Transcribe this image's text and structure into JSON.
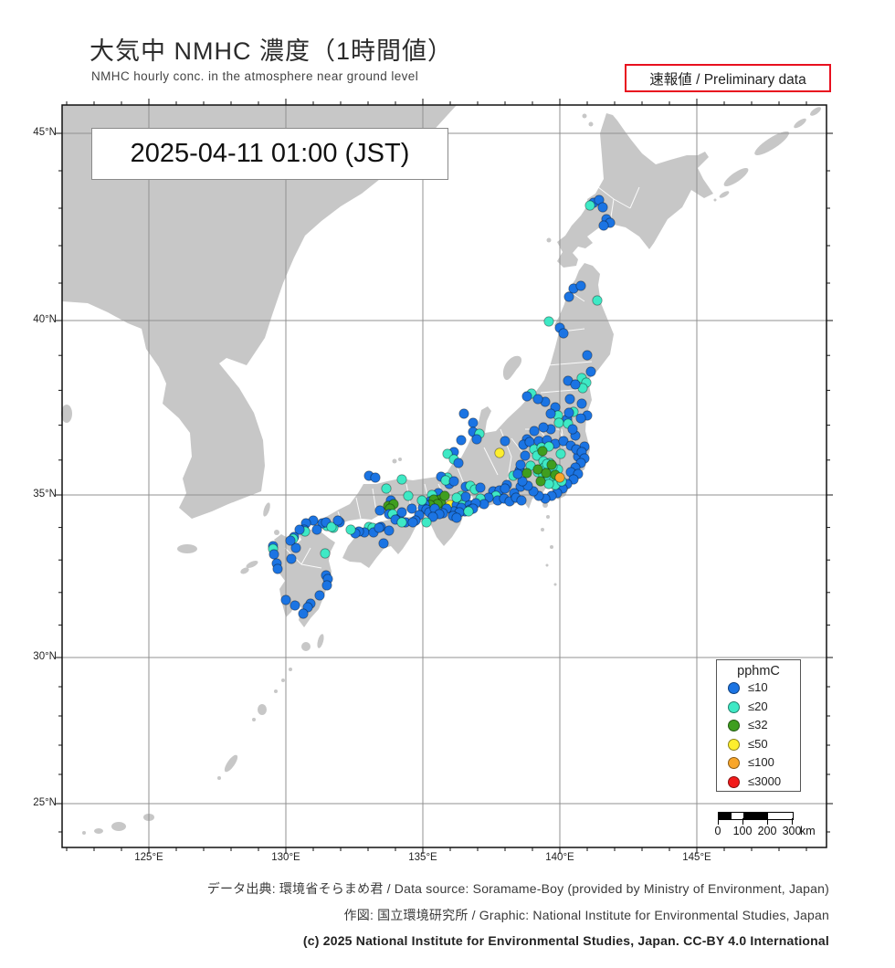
{
  "header": {
    "title": "大気中 NMHC 濃度（1時間値）",
    "subtitle": "NMHC hourly conc. in the atmosphere near ground level",
    "preliminary": "速報値 / Preliminary data"
  },
  "map": {
    "timestamp": "2025-04-11  01:00 (JST)",
    "lat_labels": [
      "45°N",
      "40°N",
      "35°N",
      "30°N",
      "25°N"
    ],
    "lon_labels": [
      "125°E",
      "130°E",
      "135°E",
      "140°E",
      "145°E"
    ]
  },
  "legend": {
    "title": "pphmC",
    "items": [
      {
        "label": "≤10",
        "color": "#1b74e3"
      },
      {
        "label": "≤20",
        "color": "#3ee9c5"
      },
      {
        "label": "≤32",
        "color": "#3f9e1f"
      },
      {
        "label": "≤50",
        "color": "#fdee2e"
      },
      {
        "label": "≤100",
        "color": "#f8a62a"
      },
      {
        "label": "≤3000",
        "color": "#f21a1a"
      }
    ]
  },
  "scalebar": {
    "ticks": [
      "0",
      "100",
      "200",
      "300"
    ],
    "unit": "km"
  },
  "footer": {
    "line1": "データ出典: 環境省そらまめ君 / Data source: Soramame-Boy (provided by Ministry of Environment, Japan)",
    "line2": "作図: 国立環境研究所 / Graphic: National Institute for Environmental Studies, Japan",
    "line3": "(c) 2025 National Institute for Environmental Studies, Japan. CC-BY 4.0 International"
  },
  "chart_data": {
    "type": "scatter",
    "note": "Air-quality monitoring stations; point = [x_px, y_px, color_class_index]; color class indexes legend.items (pphmC bins ≤10,≤20,≤32,≤50,≤100,≤3000). Map frame x:68-905px = 121.8-149.7°E, y:115-928px = 45.75-23.5°N (Mercator-like).",
    "unit": "pphmC",
    "axis": {
      "lon_ticks_deg": [
        125,
        130,
        135,
        140,
        145
      ],
      "lat_ticks_deg": [
        45,
        40,
        35,
        30,
        25
      ]
    },
    "points": [
      [
        650,
        222,
        0
      ],
      [
        656,
        219,
        0
      ],
      [
        646,
        225,
        1
      ],
      [
        660,
        227,
        0
      ],
      [
        664,
        240,
        0
      ],
      [
        668,
        244,
        0
      ],
      [
        661,
        247,
        0
      ],
      [
        628,
        316,
        0
      ],
      [
        636,
        313,
        0
      ],
      [
        623,
        325,
        0
      ],
      [
        654,
        329,
        1
      ],
      [
        601,
        352,
        1
      ],
      [
        613,
        359,
        0
      ],
      [
        617,
        365,
        0
      ],
      [
        643,
        389,
        0
      ],
      [
        647,
        407,
        0
      ],
      [
        637,
        414,
        1
      ],
      [
        642,
        419,
        1
      ],
      [
        622,
        417,
        0
      ],
      [
        638,
        425,
        1
      ],
      [
        630,
        421,
        0
      ],
      [
        582,
        431,
        1
      ],
      [
        577,
        434,
        0
      ],
      [
        624,
        437,
        0
      ],
      [
        637,
        442,
        0
      ],
      [
        608,
        446,
        0
      ],
      [
        597,
        440,
        0
      ],
      [
        589,
        437,
        0
      ],
      [
        643,
        455,
        0
      ],
      [
        628,
        451,
        1
      ],
      [
        636,
        458,
        0
      ],
      [
        621,
        459,
        0
      ],
      [
        611,
        455,
        1
      ],
      [
        508,
        453,
        0
      ],
      [
        518,
        463,
        0
      ],
      [
        518,
        473,
        0
      ],
      [
        525,
        475,
        1
      ],
      [
        522,
        481,
        0
      ],
      [
        505,
        482,
        0
      ],
      [
        497,
        495,
        0
      ],
      [
        490,
        497,
        1
      ],
      [
        497,
        503,
        1
      ],
      [
        502,
        507,
        0
      ],
      [
        490,
        523,
        1
      ],
      [
        483,
        522,
        0
      ],
      [
        492,
        530,
        0
      ],
      [
        553,
        483,
        0
      ],
      [
        547,
        496,
        3
      ],
      [
        569,
        515,
        0
      ],
      [
        562,
        521,
        1
      ],
      [
        555,
        531,
        0
      ],
      [
        570,
        533,
        0
      ],
      [
        563,
        540,
        0
      ],
      [
        540,
        538,
        0
      ],
      [
        547,
        537,
        0
      ],
      [
        553,
        535,
        0
      ],
      [
        543,
        543,
        1
      ],
      [
        535,
        545,
        0
      ],
      [
        526,
        546,
        1
      ],
      [
        530,
        552,
        0
      ],
      [
        545,
        548,
        0
      ],
      [
        552,
        546,
        0
      ],
      [
        558,
        549,
        0
      ],
      [
        565,
        545,
        0
      ],
      [
        571,
        548,
        0
      ],
      [
        480,
        540,
        0
      ],
      [
        473,
        542,
        1
      ],
      [
        471,
        549,
        0
      ],
      [
        482,
        547,
        2
      ],
      [
        483,
        551,
        2
      ],
      [
        493,
        553,
        3
      ],
      [
        500,
        553,
        0
      ],
      [
        507,
        553,
        1
      ],
      [
        514,
        553,
        0
      ],
      [
        472,
        558,
        0
      ],
      [
        478,
        558,
        1
      ],
      [
        509,
        560,
        0
      ],
      [
        515,
        558,
        0
      ],
      [
        505,
        556,
        0
      ],
      [
        497,
        560,
        0
      ],
      [
        489,
        557,
        0
      ],
      [
        503,
        561,
        0
      ],
      [
        496,
        565,
        0
      ],
      [
        521,
        551,
        0
      ],
      [
        518,
        557,
        0
      ],
      [
        513,
        560,
        1
      ],
      [
        603,
        453,
        0
      ],
      [
        623,
        452,
        0
      ],
      [
        603,
        470,
        0
      ],
      [
        612,
        463,
        1
      ],
      [
        622,
        464,
        1
      ],
      [
        630,
        477,
        0
      ],
      [
        633,
        500,
        0
      ],
      [
        595,
        468,
        0
      ],
      [
        585,
        472,
        0
      ],
      [
        577,
        481,
        0
      ],
      [
        640,
        489,
        0
      ],
      [
        627,
        470,
        0
      ],
      [
        573,
        487,
        0
      ],
      [
        580,
        484,
        0
      ],
      [
        590,
        483,
        0
      ],
      [
        599,
        482,
        0
      ],
      [
        608,
        486,
        0
      ],
      [
        617,
        483,
        0
      ],
      [
        625,
        488,
        0
      ],
      [
        631,
        492,
        0
      ],
      [
        637,
        495,
        0
      ],
      [
        640,
        502,
        0
      ],
      [
        636,
        507,
        0
      ],
      [
        630,
        512,
        0
      ],
      [
        625,
        517,
        0
      ],
      [
        633,
        519,
        0
      ],
      [
        628,
        525,
        0
      ],
      [
        621,
        530,
        0
      ],
      [
        616,
        535,
        0
      ],
      [
        610,
        540,
        0
      ],
      [
        604,
        543,
        0
      ],
      [
        597,
        546,
        0
      ],
      [
        590,
        543,
        0
      ],
      [
        584,
        538,
        0
      ],
      [
        578,
        532,
        0
      ],
      [
        572,
        527,
        0
      ],
      [
        567,
        519,
        0
      ],
      [
        570,
        509,
        0
      ],
      [
        575,
        499,
        0
      ],
      [
        585,
        492,
        1
      ],
      [
        593,
        490,
        1
      ],
      [
        601,
        489,
        1
      ],
      [
        588,
        499,
        1
      ],
      [
        595,
        505,
        1
      ],
      [
        602,
        507,
        1
      ],
      [
        596,
        512,
        1
      ],
      [
        603,
        515,
        1
      ],
      [
        589,
        517,
        1
      ],
      [
        595,
        520,
        1
      ],
      [
        601,
        523,
        1
      ],
      [
        607,
        525,
        1
      ],
      [
        611,
        514,
        1
      ],
      [
        605,
        511,
        1
      ],
      [
        599,
        508,
        1
      ],
      [
        614,
        497,
        1
      ],
      [
        581,
        510,
        1
      ],
      [
        608,
        531,
        1
      ],
      [
        601,
        530,
        1
      ],
      [
        615,
        527,
        1
      ],
      [
        594,
        494,
        2
      ],
      [
        589,
        514,
        2
      ],
      [
        604,
        509,
        2
      ],
      [
        598,
        518,
        2
      ],
      [
        608,
        520,
        2
      ],
      [
        592,
        527,
        2
      ],
      [
        577,
        518,
        2
      ],
      [
        613,
        523,
        4
      ],
      [
        488,
        526,
        1
      ],
      [
        497,
        527,
        0
      ],
      [
        510,
        533,
        0
      ],
      [
        515,
        532,
        1
      ],
      [
        520,
        536,
        1
      ],
      [
        526,
        534,
        0
      ],
      [
        505,
        543,
        1
      ],
      [
        510,
        544,
        0
      ],
      [
        500,
        545,
        1
      ],
      [
        487,
        543,
        2
      ],
      [
        475,
        547,
        2
      ],
      [
        479,
        552,
        2
      ],
      [
        471,
        553,
        2
      ],
      [
        465,
        552,
        0
      ],
      [
        463,
        556,
        0
      ],
      [
        467,
        558,
        0
      ],
      [
        470,
        561,
        0
      ],
      [
        476,
        557,
        0
      ],
      [
        485,
        562,
        0
      ],
      [
        481,
        563,
        0
      ],
      [
        500,
        567,
        0
      ],
      [
        474,
        566,
        0
      ],
      [
        467,
        572,
        1
      ],
      [
        459,
        564,
        0
      ],
      [
        455,
        570,
        0
      ],
      [
        462,
        548,
        1
      ],
      [
        404,
        521,
        0
      ],
      [
        411,
        523,
        0
      ],
      [
        423,
        535,
        1
      ],
      [
        440,
        525,
        1
      ],
      [
        447,
        543,
        1
      ],
      [
        428,
        548,
        0
      ],
      [
        425,
        554,
        2
      ],
      [
        431,
        552,
        2
      ],
      [
        427,
        557,
        2
      ],
      [
        416,
        559,
        0
      ],
      [
        426,
        563,
        0
      ],
      [
        430,
        563,
        1
      ],
      [
        444,
        572,
        0
      ],
      [
        437,
        568,
        0
      ],
      [
        451,
        557,
        0
      ],
      [
        440,
        561,
        0
      ],
      [
        404,
        577,
        1
      ],
      [
        408,
        578,
        1
      ],
      [
        417,
        577,
        0
      ],
      [
        399,
        583,
        0
      ],
      [
        393,
        582,
        0
      ],
      [
        389,
        584,
        0
      ],
      [
        384,
        580,
        1
      ],
      [
        372,
        572,
        0
      ],
      [
        365,
        578,
        1
      ],
      [
        358,
        576,
        1
      ],
      [
        353,
        573,
        0
      ],
      [
        343,
        570,
        0
      ],
      [
        335,
        573,
        0
      ],
      [
        433,
        569,
        0
      ],
      [
        440,
        572,
        1
      ],
      [
        452,
        572,
        0
      ],
      [
        420,
        595,
        0
      ],
      [
        409,
        583,
        0
      ],
      [
        415,
        578,
        0
      ],
      [
        426,
        581,
        0
      ],
      [
        357,
        572,
        0
      ],
      [
        363,
        577,
        1
      ],
      [
        370,
        570,
        0
      ],
      [
        333,
        580,
        0
      ],
      [
        334,
        582,
        1
      ],
      [
        328,
        580,
        0
      ],
      [
        322,
        588,
        0
      ],
      [
        321,
        590,
        1
      ],
      [
        299,
        598,
        0
      ],
      [
        299,
        601,
        1
      ],
      [
        300,
        607,
        0
      ],
      [
        303,
        617,
        0
      ],
      [
        304,
        623,
        0
      ],
      [
        319,
        612,
        0
      ],
      [
        356,
        606,
        1
      ],
      [
        357,
        630,
        0
      ],
      [
        359,
        634,
        0
      ],
      [
        350,
        652,
        0
      ],
      [
        313,
        657,
        0
      ],
      [
        323,
        663,
        0
      ],
      [
        340,
        661,
        0
      ],
      [
        337,
        665,
        0
      ],
      [
        332,
        672,
        0
      ],
      [
        324,
        600,
        0
      ],
      [
        318,
        592,
        0
      ],
      [
        358,
        641,
        0
      ],
      [
        347,
        580,
        0
      ]
    ]
  }
}
